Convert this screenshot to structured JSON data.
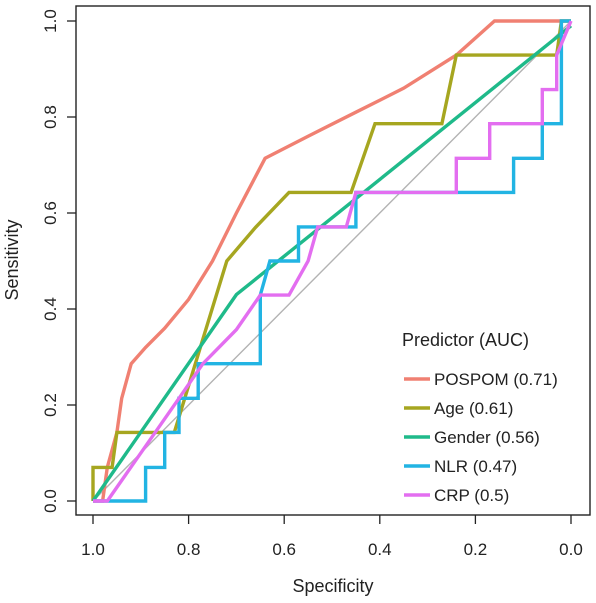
{
  "chart_data": {
    "type": "line",
    "title": "",
    "xlabel": "Specificity",
    "ylabel": "Sensitivity",
    "xlim": [
      1.0,
      0.0
    ],
    "ylim": [
      0.0,
      1.0
    ],
    "x_reversed": true,
    "x_ticks": [
      "1.0",
      "0.8",
      "0.6",
      "0.4",
      "0.2",
      "0.0"
    ],
    "y_ticks": [
      "0.0",
      "0.2",
      "0.4",
      "0.6",
      "0.8",
      "1.0"
    ],
    "reference_line": {
      "from": [
        1.0,
        0.0
      ],
      "to": [
        0.0,
        1.0
      ],
      "color": "#b3b3b3"
    },
    "grid": false,
    "legend": {
      "title": "Predictor (AUC)",
      "placement": "bottom-right",
      "entries": [
        "POSPOM (0.71)",
        "Age (0.61)",
        "Gender (0.56)",
        "NLR (0.47)",
        "CRP (0.5)"
      ]
    },
    "series": [
      {
        "name": "POSPOM (0.71)",
        "color": "#f08072",
        "points": [
          [
            1.0,
            0.0
          ],
          [
            0.98,
            0.0
          ],
          [
            0.97,
            0.07
          ],
          [
            0.95,
            0.143
          ],
          [
            0.94,
            0.214
          ],
          [
            0.92,
            0.286
          ],
          [
            0.89,
            0.32
          ],
          [
            0.85,
            0.36
          ],
          [
            0.8,
            0.42
          ],
          [
            0.75,
            0.5
          ],
          [
            0.7,
            0.6
          ],
          [
            0.64,
            0.714
          ],
          [
            0.55,
            0.76
          ],
          [
            0.45,
            0.81
          ],
          [
            0.35,
            0.86
          ],
          [
            0.24,
            0.929
          ],
          [
            0.16,
            1.0
          ],
          [
            0.0,
            1.0
          ]
        ]
      },
      {
        "name": "Age (0.61)",
        "color": "#a6a620",
        "points": [
          [
            1.0,
            0.0
          ],
          [
            1.0,
            0.07
          ],
          [
            0.96,
            0.07
          ],
          [
            0.95,
            0.143
          ],
          [
            0.83,
            0.143
          ],
          [
            0.72,
            0.5
          ],
          [
            0.66,
            0.57
          ],
          [
            0.59,
            0.643
          ],
          [
            0.46,
            0.643
          ],
          [
            0.41,
            0.786
          ],
          [
            0.27,
            0.786
          ],
          [
            0.24,
            0.929
          ],
          [
            0.03,
            0.929
          ],
          [
            0.02,
            1.0
          ],
          [
            0.0,
            1.0
          ]
        ]
      },
      {
        "name": "Gender (0.56)",
        "color": "#1fba8a",
        "points": [
          [
            1.0,
            0.0
          ],
          [
            0.7,
            0.43
          ],
          [
            0.0,
            0.99
          ]
        ]
      },
      {
        "name": "NLR (0.47)",
        "color": "#22b4e3",
        "points": [
          [
            1.0,
            0.0
          ],
          [
            0.89,
            0.0
          ],
          [
            0.89,
            0.07
          ],
          [
            0.85,
            0.07
          ],
          [
            0.85,
            0.143
          ],
          [
            0.82,
            0.143
          ],
          [
            0.82,
            0.214
          ],
          [
            0.78,
            0.214
          ],
          [
            0.78,
            0.286
          ],
          [
            0.65,
            0.286
          ],
          [
            0.65,
            0.429
          ],
          [
            0.63,
            0.5
          ],
          [
            0.57,
            0.5
          ],
          [
            0.57,
            0.571
          ],
          [
            0.45,
            0.571
          ],
          [
            0.45,
            0.643
          ],
          [
            0.12,
            0.643
          ],
          [
            0.12,
            0.714
          ],
          [
            0.06,
            0.714
          ],
          [
            0.06,
            0.786
          ],
          [
            0.02,
            0.786
          ],
          [
            0.02,
            1.0
          ],
          [
            0.0,
            1.0
          ]
        ]
      },
      {
        "name": "CRP (0.5)",
        "color": "#e36ef0",
        "points": [
          [
            1.0,
            0.0
          ],
          [
            0.97,
            0.0
          ],
          [
            0.82,
            0.214
          ],
          [
            0.77,
            0.286
          ],
          [
            0.7,
            0.357
          ],
          [
            0.65,
            0.429
          ],
          [
            0.59,
            0.429
          ],
          [
            0.55,
            0.5
          ],
          [
            0.53,
            0.571
          ],
          [
            0.47,
            0.571
          ],
          [
            0.45,
            0.643
          ],
          [
            0.24,
            0.643
          ],
          [
            0.24,
            0.714
          ],
          [
            0.17,
            0.714
          ],
          [
            0.17,
            0.786
          ],
          [
            0.06,
            0.786
          ],
          [
            0.06,
            0.857
          ],
          [
            0.03,
            0.857
          ],
          [
            0.03,
            0.929
          ],
          [
            0.0,
            1.0
          ]
        ]
      }
    ]
  }
}
